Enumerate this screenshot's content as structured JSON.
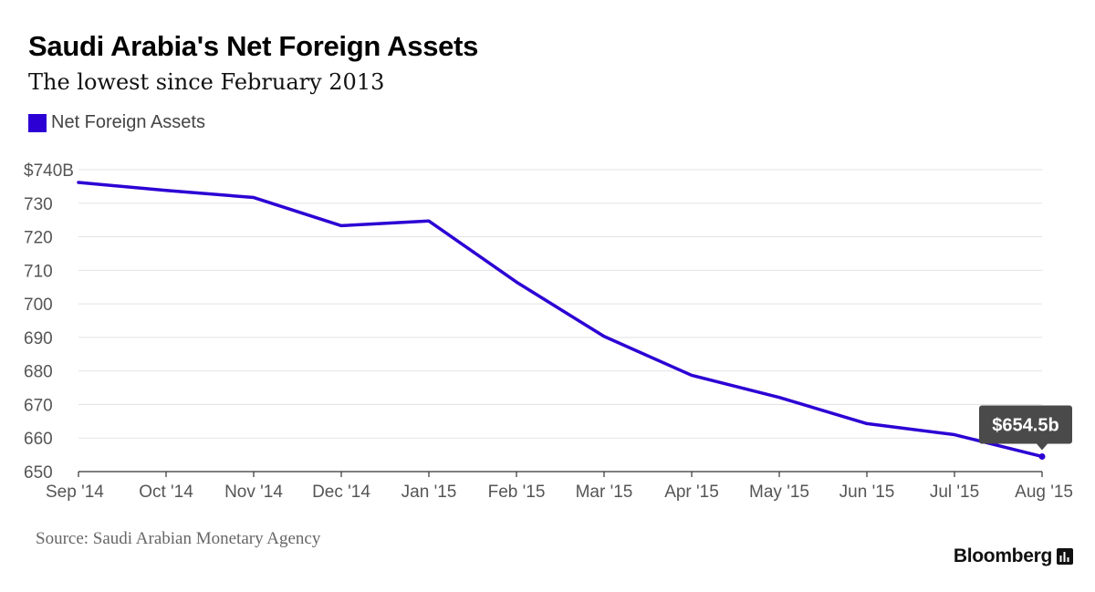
{
  "chart_data": {
    "type": "line",
    "title": "Saudi Arabia's Net Foreign Assets",
    "subtitle": "The lowest since February 2013",
    "categories": [
      "Sep '14",
      "Oct '14",
      "Nov '14",
      "Dec '14",
      "Jan '15",
      "Feb '15",
      "Mar '15",
      "Apr '15",
      "May '15",
      "Jun '15",
      "Jul '15",
      "Aug '15"
    ],
    "series": [
      {
        "name": "Net Foreign Assets",
        "color": "#2c00d4",
        "values": [
          736.2,
          733.8,
          731.7,
          723.3,
          724.7,
          706.5,
          690.3,
          678.7,
          672.1,
          664.3,
          661.0,
          654.5
        ]
      }
    ],
    "ylim": [
      650,
      740
    ],
    "yticks": [
      650,
      660,
      670,
      680,
      690,
      700,
      710,
      720,
      730,
      740
    ],
    "ytick_labels": [
      "650",
      "660",
      "670",
      "680",
      "690",
      "700",
      "710",
      "720",
      "730",
      "$740B"
    ],
    "grid": true,
    "legend_position": "top-left",
    "annotation": {
      "label": "$654.5b",
      "index": 11
    }
  },
  "source": "Source: Saudi Arabian Monetary Agency",
  "brand": "Bloomberg",
  "brand_icon": "bloomberg-chart-icon"
}
